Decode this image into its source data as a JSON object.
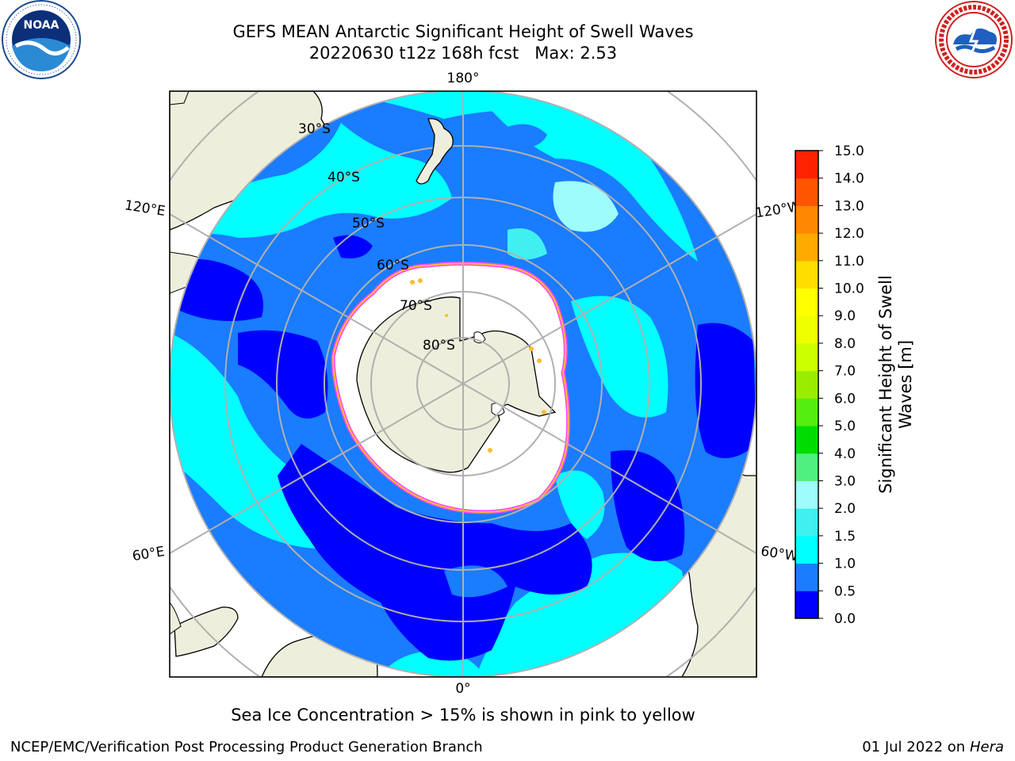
{
  "header": {
    "title_line1": "GEFS MEAN Antarctic Significant Height of Swell Waves",
    "title_line2": "20220630 t12z 168h fcst   Max: 2.53"
  },
  "logos": {
    "left": {
      "name": "noaa-logo",
      "text": "NOAA",
      "ring_text": "NATIONAL OCEANIC AND ATMOSPHERIC ADMINISTRATION · U.S. DEPARTMENT OF COMMERCE"
    },
    "right": {
      "name": "national-weather-service-logo",
      "ring_text": "NATIONAL WEATHER SERVICE"
    }
  },
  "map": {
    "projection": "south-polar-stereographic",
    "longitude_labels": [
      "180°",
      "120°E",
      "120°W",
      "60°E",
      "60°W",
      "0°"
    ],
    "latitude_labels": [
      "30°S",
      "40°S",
      "50°S",
      "60°S",
      "70°S",
      "80°S"
    ],
    "colors": {
      "land": "#eeeedc",
      "antarctica": "#eeeedc",
      "sea_ice": "#ffffff",
      "ice_edge_pink": "#ff44ff",
      "ice_edge_yellow": "#ffbb33",
      "graticule": "#b0b0b0"
    }
  },
  "colorbar": {
    "label": "Significant Height of Swell Waves [m]",
    "label_line1": "Significant Height of Swell",
    "label_line2": "Waves [m]",
    "ticks": [
      "0.0",
      "0.5",
      "1.0",
      "1.5",
      "2.0",
      "3.0",
      "4.0",
      "5.0",
      "6.0",
      "7.0",
      "8.0",
      "9.0",
      "10.0",
      "11.0",
      "12.0",
      "13.0",
      "14.0",
      "15.0"
    ],
    "colors": [
      "#0000ff",
      "#1a7cff",
      "#00ffff",
      "#40f0f0",
      "#9ffcfc",
      "#50f080",
      "#00dd00",
      "#55ee11",
      "#99ee00",
      "#ccff00",
      "#eeff00",
      "#ffff00",
      "#ffdd00",
      "#ffaa00",
      "#ff8800",
      "#ff5500",
      "#ff2200",
      "#ff0000"
    ]
  },
  "notes": {
    "sea_ice": "Sea Ice Concentration > 15% is shown in pink to yellow"
  },
  "footer": {
    "left": "NCEP/EMC/Verification Post Processing Product Generation Branch",
    "right_date": "01 Jul 2022 on ",
    "right_machine": "Hera"
  }
}
